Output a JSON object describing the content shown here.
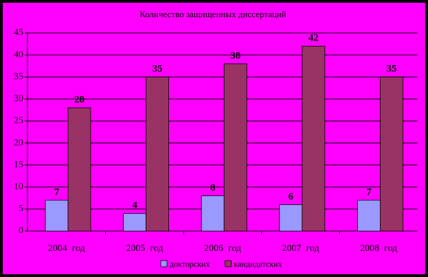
{
  "chart_data": {
    "type": "bar",
    "title": "Количество защищенных диссертаций",
    "categories": [
      "2004  год",
      "2005  год",
      "2006  год",
      "2007  год",
      "2008  год"
    ],
    "series": [
      {
        "name": "докторских",
        "color": "#9999ff",
        "values": [
          7,
          4,
          8,
          6,
          7
        ]
      },
      {
        "name": "кандидатских",
        "color": "#993366",
        "values": [
          28,
          35,
          38,
          42,
          35
        ]
      }
    ],
    "ylim": [
      0,
      45
    ],
    "yticks": [
      0,
      5,
      10,
      15,
      20,
      25,
      30,
      35,
      40,
      45
    ],
    "grid": true,
    "legend": "bottom"
  }
}
